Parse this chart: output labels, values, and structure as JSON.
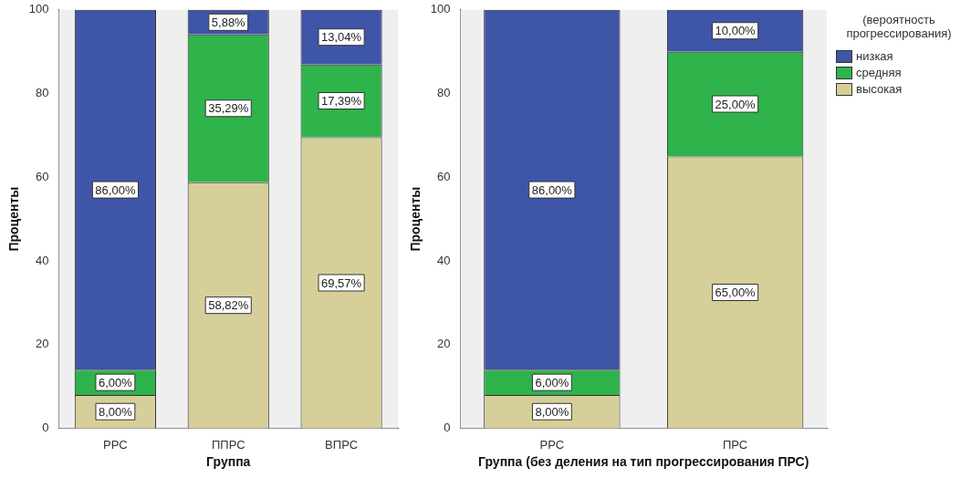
{
  "chart_data": [
    {
      "type": "bar",
      "stacked": true,
      "categories": [
        "РРС",
        "ППРС",
        "ВПРС"
      ],
      "xlabel": "Группа",
      "ylabel": "Проценты",
      "ylim": [
        0,
        100
      ],
      "yticks": [
        0,
        20,
        40,
        60,
        80,
        100
      ],
      "grid": false,
      "series": [
        {
          "color": "#d6cf9a",
          "values": [
            8.0,
            58.82,
            69.57
          ],
          "value_labels": [
            "8,00%",
            "58,82%",
            "69,57%"
          ]
        },
        {
          "color": "#2fb34b",
          "values": [
            6.0,
            35.29,
            17.39
          ],
          "value_labels": [
            "6,00%",
            "35,29%",
            "17,39%"
          ]
        },
        {
          "color": "#3f55a8",
          "values": [
            86.0,
            5.88,
            13.04
          ],
          "value_labels": [
            "86,00%",
            "5,88%",
            "13,04%"
          ]
        }
      ]
    },
    {
      "type": "bar",
      "stacked": true,
      "categories": [
        "РРС",
        "ПРС"
      ],
      "xlabel": "Группа (без деления на тип прогрессирования ПРС)",
      "ylabel": "Проценты",
      "ylim": [
        0,
        100
      ],
      "yticks": [
        0,
        20,
        40,
        60,
        80,
        100
      ],
      "grid": false,
      "legend": "right",
      "legend_title": "(вероятность прогрессирования)",
      "series": [
        {
          "name": "высокая",
          "color": "#d6cf9a",
          "values": [
            8.0,
            65.0
          ],
          "value_labels": [
            "8,00%",
            "65,00%"
          ]
        },
        {
          "name": "средняя",
          "color": "#2fb34b",
          "values": [
            6.0,
            25.0
          ],
          "value_labels": [
            "6,00%",
            "25,00%"
          ]
        },
        {
          "name": "низкая",
          "color": "#3f55a8",
          "values": [
            86.0,
            10.0
          ],
          "value_labels": [
            "86,00%",
            "10,00%"
          ]
        }
      ]
    }
  ]
}
